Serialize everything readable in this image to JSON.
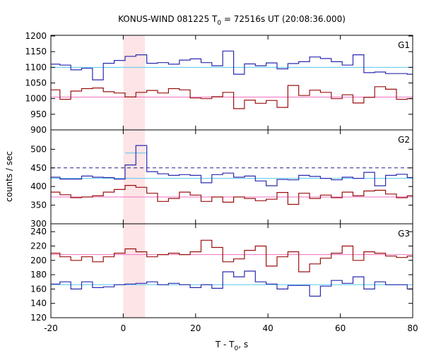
{
  "chart_data": {
    "type": "line",
    "title_prefix": "KONUS-WIND 081225 T",
    "title_sub": "0",
    "title_suffix": " = 72516s UT (20:08:36.000)",
    "ylabel": "counts / sec",
    "xlabel_prefix": "T - T",
    "xlabel_sub": "0",
    "xlabel_suffix": ", s",
    "xlim": [
      -20,
      80
    ],
    "xticks": [
      "-20",
      "0",
      "20",
      "40",
      "60",
      "80"
    ],
    "highlight_region": [
      0,
      6
    ],
    "colors": {
      "blue": "#2a2ab0",
      "red": "#9a1010",
      "cyan": "#5ac8ee",
      "pink": "#f070c0",
      "dash": "#20208a",
      "shade": "#fde4e6"
    },
    "bin_edges": [
      -20,
      -17.5,
      -14.5,
      -11.5,
      -8.5,
      -5.5,
      -2.5,
      0.5,
      3.5,
      6.5,
      9.5,
      12.5,
      15.5,
      18.5,
      21.5,
      24.5,
      27.5,
      30.5,
      33.5,
      36.5,
      39.5,
      42.5,
      45.5,
      48.5,
      51.5,
      54.5,
      57.5,
      60.5,
      63.5,
      66.5,
      69.5,
      72.5,
      75.5,
      78.5,
      80
    ],
    "panels": [
      {
        "label": "G1",
        "ylim": [
          900,
          1200
        ],
        "yticks": [
          "900",
          "950",
          "1000",
          "1050",
          "1100",
          "1150",
          "1200"
        ],
        "bg_blue": 1100,
        "bg_red": 1005,
        "series_blue": [
          1110,
          1107,
          1092,
          1097,
          1060,
          1113,
          1122,
          1135,
          1140,
          1113,
          1115,
          1110,
          1123,
          1127,
          1115,
          1105,
          1152,
          1078,
          1111,
          1105,
          1114,
          1095,
          1112,
          1118,
          1133,
          1128,
          1118,
          1107,
          1140,
          1083,
          1085,
          1080,
          1080,
          1078
        ],
        "series_red": [
          1028,
          998,
          1024,
          1032,
          1034,
          1022,
          1018,
          1005,
          1020,
          1026,
          1018,
          1032,
          1028,
          1002,
          1000,
          1006,
          1020,
          968,
          995,
          985,
          994,
          972,
          1042,
          1010,
          1027,
          1020,
          1000,
          1012,
          986,
          1004,
          1038,
          1030,
          998,
          1000
        ]
      },
      {
        "label": "G2",
        "ylim": [
          300,
          550
        ],
        "yticks": [
          "300",
          "350",
          "400",
          "450",
          "500"
        ],
        "bg_blue": 422,
        "bg_red": 372,
        "dash_level": 450,
        "extra_cyan": [
          {
            "x0": 0.5,
            "x1": 3.5,
            "y": 490
          },
          {
            "x0": 3.5,
            "x1": 6.5,
            "y": 490
          }
        ],
        "series_blue": [
          425,
          420,
          420,
          428,
          425,
          424,
          420,
          458,
          510,
          440,
          434,
          430,
          432,
          430,
          410,
          432,
          436,
          425,
          428,
          415,
          402,
          419,
          418,
          430,
          427,
          422,
          418,
          425,
          422,
          438,
          402,
          430,
          433,
          424
        ],
        "series_red": [
          385,
          378,
          370,
          372,
          375,
          385,
          392,
          403,
          398,
          382,
          360,
          368,
          385,
          377,
          360,
          372,
          358,
          372,
          368,
          362,
          366,
          384,
          352,
          382,
          368,
          377,
          370,
          385,
          375,
          388,
          390,
          380,
          370,
          375
        ]
      },
      {
        "label": "G3",
        "ylim": [
          120,
          250
        ],
        "yticks": [
          "120",
          "140",
          "160",
          "180",
          "200",
          "220",
          "240"
        ],
        "bg_blue": 166,
        "bg_red": 208,
        "series_blue": [
          167,
          170,
          160,
          170,
          162,
          163,
          166,
          167,
          168,
          170,
          166,
          168,
          166,
          162,
          166,
          161,
          184,
          177,
          185,
          170,
          167,
          160,
          165,
          165,
          150,
          164,
          172,
          168,
          177,
          160,
          170,
          166,
          166,
          160
        ],
        "series_red": [
          210,
          205,
          200,
          205,
          198,
          205,
          210,
          216,
          212,
          205,
          208,
          210,
          208,
          212,
          228,
          218,
          198,
          202,
          214,
          220,
          192,
          205,
          212,
          184,
          195,
          203,
          210,
          220,
          200,
          212,
          210,
          206,
          204,
          206
        ]
      }
    ]
  }
}
